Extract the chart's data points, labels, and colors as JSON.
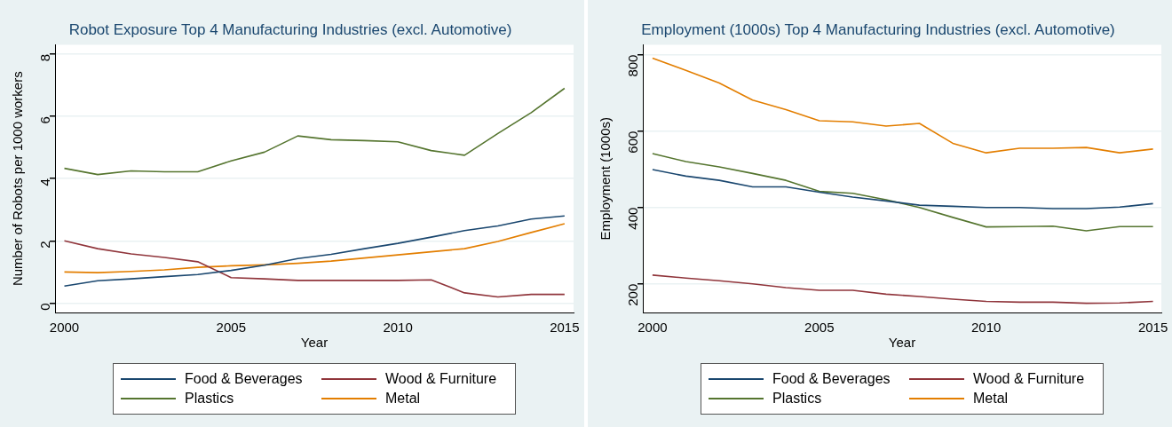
{
  "chart_data": [
    {
      "type": "line",
      "title": "Robot Exposure Top 4 Manufacturing Industries (excl. Automotive)",
      "xlabel": "Year",
      "ylabel": "Number of Robots per 1000 workers",
      "x": [
        2000,
        2001,
        2002,
        2003,
        2004,
        2005,
        2006,
        2007,
        2008,
        2009,
        2010,
        2011,
        2012,
        2013,
        2014,
        2015
      ],
      "series": [
        {
          "name": "Food & Beverages",
          "color": "#1a476f",
          "values": [
            0.55,
            0.72,
            0.78,
            0.85,
            0.92,
            1.05,
            1.22,
            1.43,
            1.57,
            1.75,
            1.92,
            2.12,
            2.33,
            2.48,
            2.7,
            2.8
          ]
        },
        {
          "name": "Wood & Furniture",
          "color": "#90353b",
          "values": [
            2.0,
            1.75,
            1.58,
            1.47,
            1.33,
            0.82,
            0.78,
            0.73,
            0.73,
            0.73,
            0.73,
            0.75,
            0.33,
            0.2,
            0.28,
            0.28
          ]
        },
        {
          "name": "Plastics",
          "color": "#55752f",
          "values": [
            4.33,
            4.13,
            4.25,
            4.22,
            4.22,
            4.57,
            4.85,
            5.37,
            5.25,
            5.22,
            5.18,
            4.9,
            4.75,
            5.45,
            6.12,
            6.9
          ]
        },
        {
          "name": "Metal",
          "color": "#e37e00",
          "values": [
            1.0,
            0.98,
            1.02,
            1.07,
            1.15,
            1.2,
            1.23,
            1.28,
            1.35,
            1.45,
            1.55,
            1.65,
            1.75,
            1.98,
            2.27,
            2.55
          ]
        }
      ],
      "xlim": [
        1999.72,
        2015.27
      ],
      "xticks": [
        2000,
        2005,
        2010,
        2015
      ],
      "ylim": [
        -0.3,
        8.3
      ],
      "yticks": [
        0,
        2,
        4,
        6,
        8
      ],
      "grid": "y",
      "legend": "bottom",
      "marker": "none",
      "line_style": "solid"
    },
    {
      "type": "line",
      "title": "Employment (1000s) Top 4 Manufacturing Industries (excl. Automotive)",
      "xlabel": "Year",
      "ylabel": "Employment (1000s)",
      "x": [
        2000,
        2001,
        2002,
        2003,
        2004,
        2005,
        2006,
        2007,
        2008,
        2009,
        2010,
        2011,
        2012,
        2013,
        2014,
        2015
      ],
      "series": [
        {
          "name": "Food & Beverages",
          "color": "#1a476f",
          "values": [
            499,
            482,
            471,
            454,
            454,
            440,
            427,
            417,
            406,
            403,
            400,
            400,
            397,
            397,
            401,
            410
          ]
        },
        {
          "name": "Wood & Furniture",
          "color": "#90353b",
          "values": [
            223,
            215,
            208,
            200,
            190,
            183,
            183,
            173,
            167,
            160,
            154,
            152,
            152,
            149,
            150,
            154
          ]
        },
        {
          "name": "Plastics",
          "color": "#55752f",
          "values": [
            541,
            520,
            506,
            489,
            471,
            442,
            437,
            420,
            400,
            374,
            349,
            350,
            351,
            339,
            350,
            350
          ]
        },
        {
          "name": "Metal",
          "color": "#e37e00",
          "values": [
            791,
            759,
            726,
            681,
            656,
            627,
            624,
            613,
            620,
            568,
            543,
            555,
            555,
            557,
            543,
            553
          ]
        }
      ],
      "xlim": [
        1999.71,
        2015.25
      ],
      "xticks": [
        2000,
        2005,
        2010,
        2015
      ],
      "ylim": [
        125,
        826
      ],
      "yticks": [
        200,
        400,
        600,
        800
      ],
      "grid": "y",
      "legend": "bottom",
      "marker": "none",
      "line_style": "solid"
    }
  ]
}
